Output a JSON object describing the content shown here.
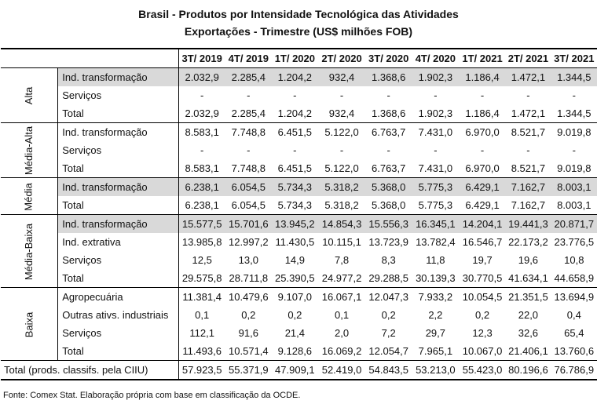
{
  "title_line1": "Brasil - Produtos por Intensidade Tecnológica das Atividades",
  "title_line2": "Exportações - Trimestre (US$ milhões FOB)",
  "columns": [
    "3T/ 2019",
    "4T/ 2019",
    "1T/ 2020",
    "2T/ 2020",
    "3T/ 2020",
    "4T/ 2020",
    "1T/ 2021",
    "2T/ 2021",
    "3T/ 2021"
  ],
  "groups": [
    {
      "name": "Alta",
      "rows": [
        {
          "label": "Ind. transformação",
          "values": [
            "2.032,9",
            "2.285,4",
            "1.204,2",
            "932,4",
            "1.368,6",
            "1.902,3",
            "1.186,4",
            "1.472,1",
            "1.344,5"
          ]
        },
        {
          "label": "Serviços",
          "values": [
            "-",
            "-",
            "-",
            "-",
            "-",
            "-",
            "-",
            "-",
            "-"
          ]
        },
        {
          "label": "Total",
          "values": [
            "2.032,9",
            "2.285,4",
            "1.204,2",
            "932,4",
            "1.368,6",
            "1.902,3",
            "1.186,4",
            "1.472,1",
            "1.344,5"
          ]
        }
      ]
    },
    {
      "name": "Média-Alta",
      "rows": [
        {
          "label": "Ind. transformação",
          "values": [
            "8.583,1",
            "7.748,8",
            "6.451,5",
            "5.122,0",
            "6.763,7",
            "7.431,0",
            "6.970,0",
            "8.521,7",
            "9.019,8"
          ]
        },
        {
          "label": "Serviços",
          "values": [
            "-",
            "-",
            "-",
            "-",
            "-",
            "-",
            "-",
            "-",
            "-"
          ]
        },
        {
          "label": "Total",
          "values": [
            "8.583,1",
            "7.748,8",
            "6.451,5",
            "5.122,0",
            "6.763,7",
            "7.431,0",
            "6.970,0",
            "8.521,7",
            "9.019,8"
          ]
        }
      ]
    },
    {
      "name": "Média",
      "rows": [
        {
          "label": "Ind. transformação",
          "values": [
            "6.238,1",
            "6.054,5",
            "5.734,3",
            "5.318,2",
            "5.368,0",
            "5.775,3",
            "6.429,1",
            "7.162,7",
            "8.003,1"
          ]
        },
        {
          "label": "Total",
          "values": [
            "6.238,1",
            "6.054,5",
            "5.734,3",
            "5.318,2",
            "5.368,0",
            "5.775,3",
            "6.429,1",
            "7.162,7",
            "8.003,1"
          ]
        }
      ]
    },
    {
      "name": "Média-Baixa",
      "rows": [
        {
          "label": "Ind. transformação",
          "values": [
            "15.577,5",
            "15.701,6",
            "13.945,2",
            "14.854,3",
            "15.556,3",
            "16.345,1",
            "14.204,1",
            "19.441,3",
            "20.871,7"
          ]
        },
        {
          "label": "Ind. extrativa",
          "values": [
            "13.985,8",
            "12.997,2",
            "11.430,5",
            "10.115,1",
            "13.723,9",
            "13.782,4",
            "16.546,7",
            "22.173,2",
            "23.776,5"
          ]
        },
        {
          "label": "Serviços",
          "values": [
            "12,5",
            "13,0",
            "14,9",
            "7,8",
            "8,3",
            "11,8",
            "19,7",
            "19,6",
            "10,8"
          ]
        },
        {
          "label": "Total",
          "values": [
            "29.575,8",
            "28.711,8",
            "25.390,5",
            "24.977,2",
            "29.288,5",
            "30.139,3",
            "30.770,5",
            "41.634,1",
            "44.658,9"
          ]
        }
      ]
    },
    {
      "name": "Baixa",
      "rows": [
        {
          "label": "Agropecuária",
          "values": [
            "11.381,4",
            "10.479,6",
            "9.107,0",
            "16.067,1",
            "12.047,3",
            "7.933,2",
            "10.054,5",
            "21.351,5",
            "13.694,9"
          ]
        },
        {
          "label": "Outras ativs. industriais",
          "values": [
            "0,1",
            "0,2",
            "0,2",
            "0,1",
            "0,2",
            "2,2",
            "0,2",
            "22,0",
            "0,4"
          ]
        },
        {
          "label": "Serviços",
          "values": [
            "112,1",
            "91,6",
            "21,4",
            "2,0",
            "7,2",
            "29,7",
            "12,3",
            "32,6",
            "65,4"
          ]
        },
        {
          "label": "Total",
          "values": [
            "11.493,6",
            "10.571,4",
            "9.128,6",
            "16.069,2",
            "12.054,7",
            "7.965,1",
            "10.067,0",
            "21.406,1",
            "13.760,6"
          ]
        }
      ]
    }
  ],
  "grand_total": {
    "label": "Total (prods. classifs. pela CIIU)",
    "values": [
      "57.923,5",
      "55.371,9",
      "47.909,1",
      "52.419,0",
      "54.843,5",
      "53.213,0",
      "55.423,0",
      "80.196,6",
      "76.786,9"
    ]
  },
  "source": "Fonte: Comex Stat. Elaboração própria com base em classificação da OCDE.",
  "colors": {
    "shade": "#d9d9d9",
    "border": "#000000"
  }
}
